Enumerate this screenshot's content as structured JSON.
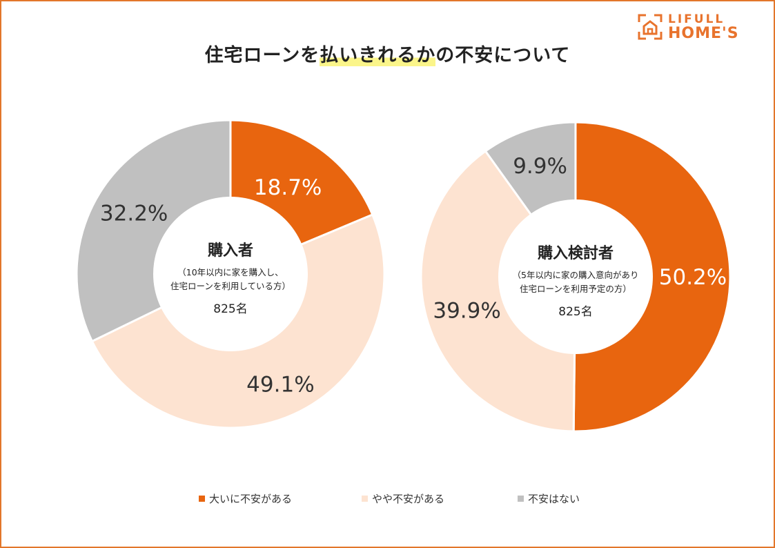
{
  "title_pre": "住宅ローンを",
  "title_hl": "払いきれるか",
  "title_post": "の不安について",
  "logo": {
    "line1": "LIFULL",
    "line2": "HOME'S"
  },
  "colors": {
    "high": "#e8650f",
    "mid": "#fde3d1",
    "none": "#c0c0c0",
    "frame": "#e2762a"
  },
  "chart_data": [
    {
      "type": "pie",
      "donut": true,
      "center_title": "購入者",
      "center_sub1": "（10年以内に家を購入し、",
      "center_sub2": "住宅ローンを利用している方）",
      "center_n": "825名",
      "categories": [
        "大いに不安がある",
        "やや不安がある",
        "不安はない"
      ],
      "values": [
        18.7,
        49.1,
        32.2
      ],
      "labels": [
        "18.7%",
        "49.1%",
        "32.2%"
      ]
    },
    {
      "type": "pie",
      "donut": true,
      "center_title": "購入検討者",
      "center_sub1": "（5年以内に家の購入意向があり",
      "center_sub2": "住宅ローンを利用予定の方）",
      "center_n": "825名",
      "categories": [
        "大いに不安がある",
        "やや不安がある",
        "不安はない"
      ],
      "values": [
        50.2,
        39.9,
        9.9
      ],
      "labels": [
        "50.2%",
        "39.9%",
        "9.9%"
      ]
    }
  ],
  "legend": [
    "大いに不安がある",
    "やや不安がある",
    "不安はない"
  ]
}
